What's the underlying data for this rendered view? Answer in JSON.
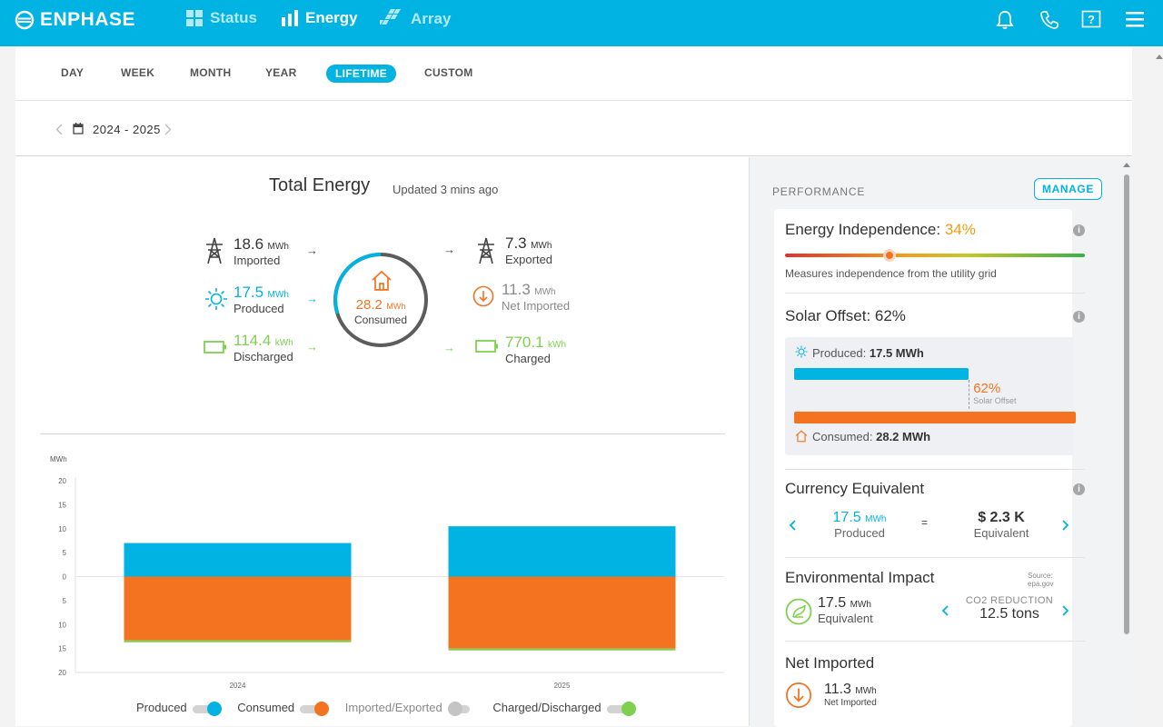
{
  "brand": {
    "name": "ENPHASE"
  },
  "nav": {
    "status": "Status",
    "energy": "Energy",
    "array": "Array"
  },
  "tabs": [
    "DAY",
    "WEEK",
    "MONTH",
    "YEAR",
    "LIFETIME",
    "CUSTOM"
  ],
  "date_range": "2024 - 2025",
  "total": {
    "title": "Total Energy",
    "updated": "Updated 3 mins ago",
    "imported": {
      "value": "18.6",
      "unit": "MWh",
      "label": "Imported"
    },
    "produced": {
      "value": "17.5",
      "unit": "MWh",
      "label": "Produced"
    },
    "discharged": {
      "value": "114.4",
      "unit": "kWh",
      "label": "Discharged"
    },
    "consumed": {
      "value": "28.2",
      "unit": "MWh",
      "label": "Consumed"
    },
    "exported": {
      "value": "7.3",
      "unit": "MWh",
      "label": "Exported"
    },
    "net_imported": {
      "value": "11.3",
      "unit": "MWh",
      "label": "Net Imported"
    },
    "charged": {
      "value": "770.1",
      "unit": "kWh",
      "label": "Charged"
    }
  },
  "chart_data": {
    "type": "bar",
    "ylabel": "MWh",
    "yticks": [
      "20",
      "15",
      "10",
      "5",
      "0",
      "5",
      "10",
      "15",
      "20"
    ],
    "categories": [
      "2024",
      "2025"
    ],
    "series": [
      {
        "name": "Produced",
        "values": [
          7.0,
          10.5
        ]
      },
      {
        "name": "Consumed",
        "values": [
          -13.3,
          -15.0
        ]
      },
      {
        "name": "Charged/Discharged",
        "values": [
          -0.4,
          -0.4
        ]
      }
    ],
    "ylim": [
      -20,
      20
    ],
    "legend": [
      "Produced",
      "Consumed",
      "Imported/Exported",
      "Charged/Discharged"
    ],
    "colors": {
      "produced": "#01b3e3",
      "consumed": "#f37321",
      "imported": "#c4c4c4",
      "charged": "#7ed14f"
    }
  },
  "performance": {
    "title": "PERFORMANCE",
    "manage": "MANAGE",
    "independence": {
      "label": "Energy Independence:",
      "value": "34%",
      "fraction": 0.34,
      "desc": "Measures independence from the utility grid"
    },
    "solar_offset": {
      "title": "Solar Offset: 62%",
      "produced_label": "Produced:",
      "produced_value": "17.5 MWh",
      "offset_value": "62%",
      "offset_label": "Solar Offset",
      "consumed_label": "Consumed:",
      "consumed_value": "28.2 MWh",
      "produced_fraction": 0.62
    },
    "currency": {
      "title": "Currency Equivalent",
      "value": "17.5",
      "unit": "MWh",
      "produced": "Produced",
      "eq": "=",
      "money": "$ 2.3 K",
      "equivalent": "Equivalent"
    },
    "environment": {
      "title": "Environmental Impact",
      "source": "Source: epa.gov",
      "value": "17.5",
      "unit": "MWh",
      "equivalent": "Equivalent",
      "co2_label": "CO2 REDUCTION",
      "co2_value": "12.5 tons"
    },
    "net_imported": {
      "title": "Net Imported",
      "value": "11.3",
      "unit": "MWh",
      "label": "Net Imported"
    }
  }
}
